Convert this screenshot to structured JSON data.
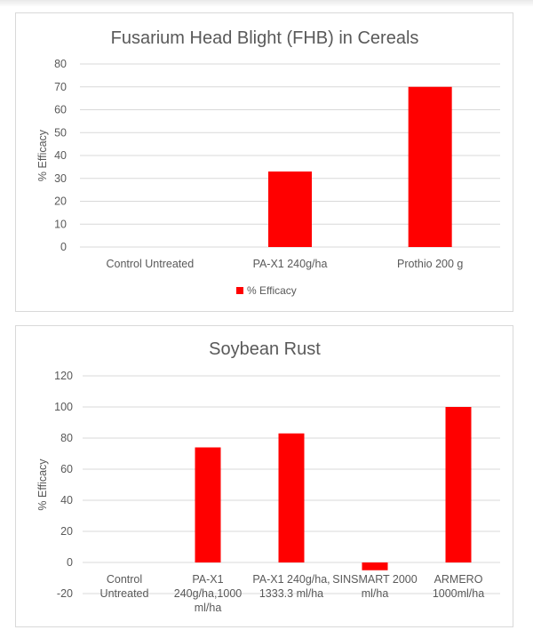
{
  "chart_data": [
    {
      "type": "bar",
      "title": "Fusarium Head Blight (FHB) in Cereals",
      "xlabel": "",
      "ylabel": "% Efficacy",
      "ylim": [
        0,
        80
      ],
      "yticks": [
        0,
        10,
        20,
        30,
        40,
        50,
        60,
        70,
        80
      ],
      "categories": [
        [
          "Control Untreated"
        ],
        [
          "PA-X1 240g/ha"
        ],
        [
          "Prothio 200 g"
        ]
      ],
      "series": [
        {
          "name": "% Efficacy",
          "values": [
            0,
            33,
            70
          ]
        }
      ],
      "color": "#ff0000",
      "grid": true,
      "legend": "bottom"
    },
    {
      "type": "bar",
      "title": "Soybean Rust",
      "xlabel": "",
      "ylabel": "% Efficacy",
      "ylim": [
        -20,
        120
      ],
      "yticks": [
        -20,
        0,
        20,
        40,
        60,
        80,
        100,
        120
      ],
      "categories": [
        [
          "Control",
          "Untreated"
        ],
        [
          "PA-X1",
          "240g/ha,1000",
          "ml/ha"
        ],
        [
          "PA-X1 240g/ha,",
          "1333.3 ml/ha"
        ],
        [
          "SINSMART 2000",
          "ml/ha"
        ],
        [
          "ARMERO",
          "1000ml/ha"
        ]
      ],
      "series": [
        {
          "values": [
            0,
            74,
            83,
            -5,
            100
          ]
        }
      ],
      "color": "#ff0000",
      "grid": true,
      "legend": "none"
    }
  ]
}
